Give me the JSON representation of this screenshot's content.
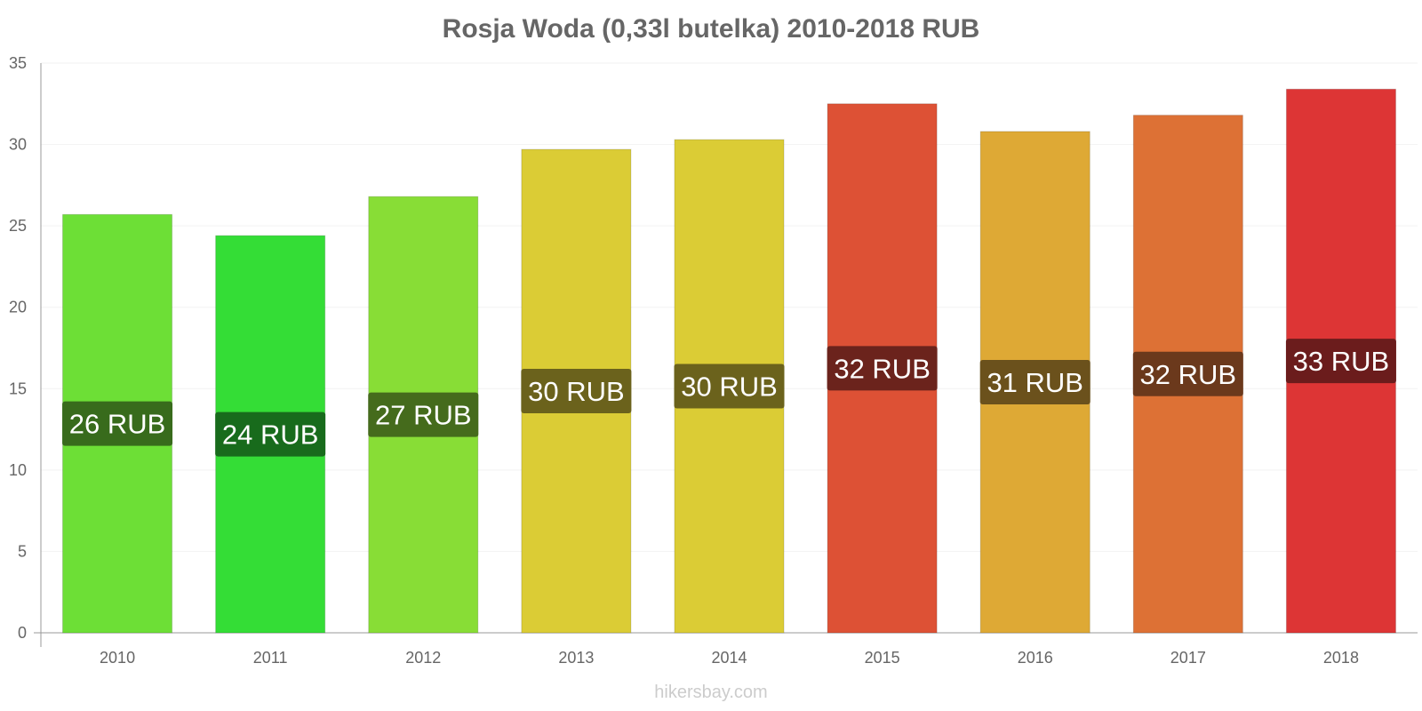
{
  "chart_data": {
    "type": "bar",
    "title": "Rosja Woda (0,33l butelka) 2010-2018 RUB",
    "xlabel": "",
    "ylabel": "",
    "categories": [
      "2010",
      "2011",
      "2012",
      "2013",
      "2014",
      "2015",
      "2016",
      "2017",
      "2018"
    ],
    "values": [
      25.7,
      24.4,
      26.8,
      29.7,
      30.3,
      32.5,
      30.8,
      31.8,
      33.4
    ],
    "data_labels": [
      "26 RUB",
      "24 RUB",
      "27 RUB",
      "30 RUB",
      "30 RUB",
      "32 RUB",
      "31 RUB",
      "32 RUB",
      "33 RUB"
    ],
    "bar_colors": [
      "#6ddf36",
      "#34dd36",
      "#88dd36",
      "#dbcc35",
      "#dbcc35",
      "#dd5135",
      "#dea935",
      "#dd7135",
      "#dd3535"
    ],
    "label_bg_colors": [
      "#386b1c",
      "#186b1c",
      "#456b1c",
      "#6b621c",
      "#6b621c",
      "#6b231c",
      "#6b511c",
      "#6b391c",
      "#6b1c1c"
    ],
    "yticks": [
      0,
      5,
      10,
      15,
      20,
      25,
      30,
      35
    ],
    "ylim": [
      0,
      35
    ],
    "grid": true,
    "legend": "none"
  },
  "watermark": "hikersbay.com"
}
